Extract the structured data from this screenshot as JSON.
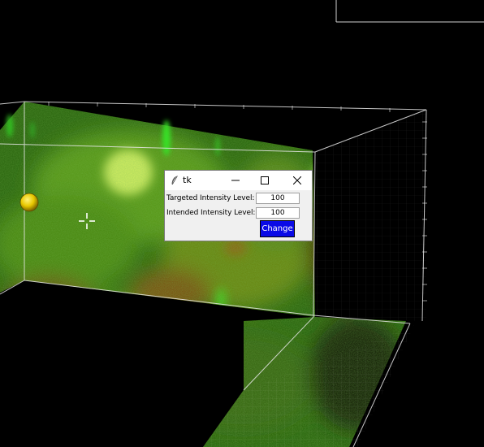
{
  "window": {
    "title": "tk",
    "icon": "feather-icon",
    "controls": [
      "minimize-icon",
      "maximize-icon",
      "close-icon"
    ]
  },
  "form": {
    "targeted_label": "Targeted Intensity Level:",
    "targeted_value": "100",
    "intended_label": "Intended Intensity Level:",
    "intended_value": "100",
    "change_label": "Change"
  },
  "colors": {
    "background": "#000000",
    "volume_green": "#3a8f1a",
    "volume_red": "#7a2a10",
    "bright_green": "#4cff30",
    "sphere": "#e8c800",
    "button_bg": "#0a0ae6"
  },
  "scene_icons": [
    "crosshair-cursor-icon",
    "yellow-sphere-icon"
  ]
}
